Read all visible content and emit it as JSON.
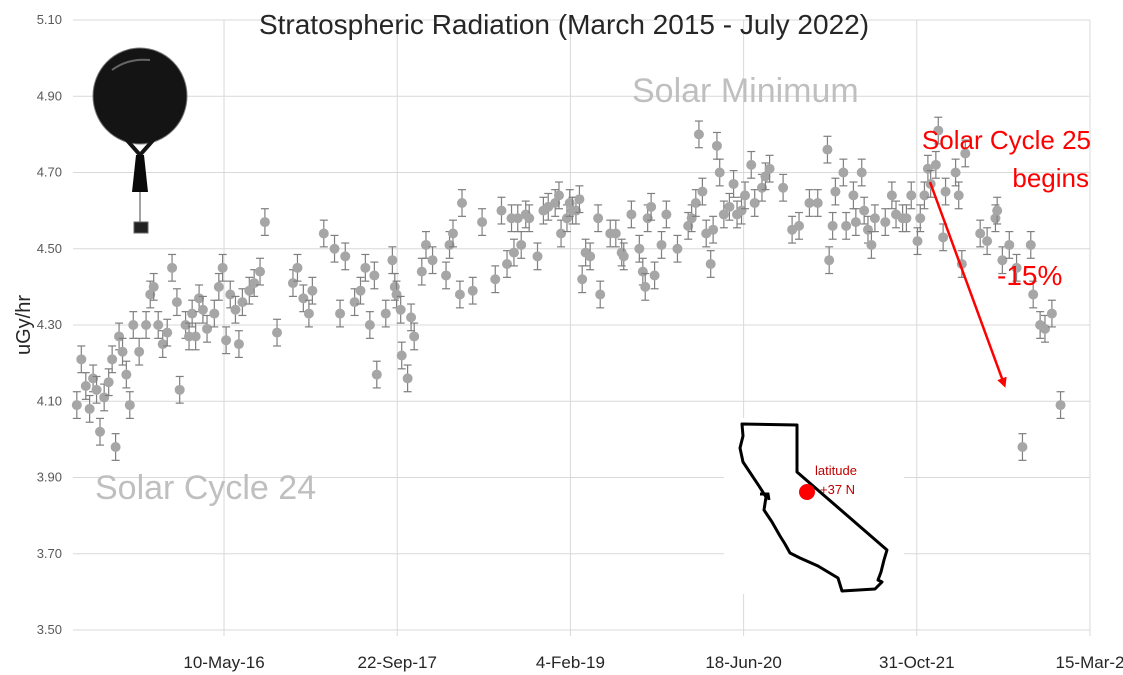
{
  "chart_data": {
    "type": "scatter",
    "title": "Stratospheric Radiation (March 2015 - July 2022)",
    "xlabel": "",
    "ylabel": "uGy/hr",
    "ylim": [
      3.5,
      5.1
    ],
    "yticks": [
      "3.50",
      "3.70",
      "3.90",
      "4.10",
      "4.30",
      "4.50",
      "4.70",
      "4.90",
      "5.10"
    ],
    "xlim": [
      "2015-03-01",
      "2023-03-15"
    ],
    "xticks": [
      {
        "date": "2016-05-10",
        "label": "10-May-16"
      },
      {
        "date": "2017-09-22",
        "label": "22-Sep-17"
      },
      {
        "date": "2019-02-04",
        "label": "4-Feb-19"
      },
      {
        "date": "2020-06-18",
        "label": "18-Jun-20"
      },
      {
        "date": "2021-10-31",
        "label": "31-Oct-21"
      },
      {
        "date": "2023-03-15",
        "label": "15-Mar-2"
      }
    ],
    "grid": true,
    "series": [
      {
        "color": "#a6a6a6",
        "error_bar": 0.035,
        "points": [
          [
            "2015-03-12",
            4.09
          ],
          [
            "2015-03-25",
            4.21
          ],
          [
            "2015-04-07",
            4.14
          ],
          [
            "2015-04-18",
            4.08
          ],
          [
            "2015-04-28",
            4.16
          ],
          [
            "2015-05-08",
            4.13
          ],
          [
            "2015-05-18",
            4.02
          ],
          [
            "2015-05-30",
            4.11
          ],
          [
            "2015-06-12",
            4.15
          ],
          [
            "2015-06-22",
            4.21
          ],
          [
            "2015-07-02",
            3.98
          ],
          [
            "2015-07-12",
            4.27
          ],
          [
            "2015-07-22",
            4.23
          ],
          [
            "2015-08-02",
            4.17
          ],
          [
            "2015-08-12",
            4.09
          ],
          [
            "2015-08-22",
            4.3
          ],
          [
            "2015-09-08",
            4.23
          ],
          [
            "2015-09-28",
            4.3
          ],
          [
            "2015-10-10",
            4.38
          ],
          [
            "2015-10-20",
            4.4
          ],
          [
            "2015-11-02",
            4.3
          ],
          [
            "2015-11-15",
            4.25
          ],
          [
            "2015-11-28",
            4.28
          ],
          [
            "2015-12-12",
            4.45
          ],
          [
            "2015-12-26",
            4.36
          ],
          [
            "2016-01-03",
            4.13
          ],
          [
            "2016-01-20",
            4.3
          ],
          [
            "2016-01-30",
            4.27
          ],
          [
            "2016-02-08",
            4.33
          ],
          [
            "2016-02-18",
            4.27
          ],
          [
            "2016-02-28",
            4.37
          ],
          [
            "2016-03-10",
            4.34
          ],
          [
            "2016-03-22",
            4.29
          ],
          [
            "2016-04-12",
            4.33
          ],
          [
            "2016-04-25",
            4.4
          ],
          [
            "2016-05-06",
            4.45
          ],
          [
            "2016-05-16",
            4.26
          ],
          [
            "2016-05-28",
            4.38
          ],
          [
            "2016-06-12",
            4.34
          ],
          [
            "2016-06-22",
            4.25
          ],
          [
            "2016-07-02",
            4.36
          ],
          [
            "2016-07-22",
            4.39
          ],
          [
            "2016-08-05",
            4.41
          ],
          [
            "2016-08-22",
            4.44
          ],
          [
            "2016-09-05",
            4.57
          ],
          [
            "2016-10-10",
            4.28
          ],
          [
            "2016-11-25",
            4.41
          ],
          [
            "2016-12-08",
            4.45
          ],
          [
            "2016-12-25",
            4.37
          ],
          [
            "2017-01-10",
            4.33
          ],
          [
            "2017-01-20",
            4.39
          ],
          [
            "2017-02-22",
            4.54
          ],
          [
            "2017-03-25",
            4.5
          ],
          [
            "2017-04-10",
            4.33
          ],
          [
            "2017-04-25",
            4.48
          ],
          [
            "2017-05-22",
            4.36
          ],
          [
            "2017-06-08",
            4.39
          ],
          [
            "2017-06-22",
            4.45
          ],
          [
            "2017-07-05",
            4.3
          ],
          [
            "2017-07-18",
            4.43
          ],
          [
            "2017-07-25",
            4.17
          ],
          [
            "2017-08-20",
            4.33
          ],
          [
            "2017-09-08",
            4.47
          ],
          [
            "2017-09-15",
            4.4
          ],
          [
            "2017-09-20",
            4.38
          ],
          [
            "2017-10-02",
            4.34
          ],
          [
            "2017-10-05",
            4.22
          ],
          [
            "2017-10-22",
            4.16
          ],
          [
            "2017-11-01",
            4.32
          ],
          [
            "2017-11-10",
            4.27
          ],
          [
            "2017-12-02",
            4.44
          ],
          [
            "2017-12-14",
            4.51
          ],
          [
            "2018-01-02",
            4.47
          ],
          [
            "2018-02-10",
            4.43
          ],
          [
            "2018-02-20",
            4.51
          ],
          [
            "2018-03-02",
            4.54
          ],
          [
            "2018-03-22",
            4.38
          ],
          [
            "2018-03-28",
            4.62
          ],
          [
            "2018-04-28",
            4.39
          ],
          [
            "2018-05-25",
            4.57
          ],
          [
            "2018-07-02",
            4.42
          ],
          [
            "2018-07-20",
            4.6
          ],
          [
            "2018-08-05",
            4.46
          ],
          [
            "2018-08-18",
            4.58
          ],
          [
            "2018-08-25",
            4.49
          ],
          [
            "2018-09-05",
            4.58
          ],
          [
            "2018-09-15",
            4.51
          ],
          [
            "2018-09-28",
            4.59
          ],
          [
            "2018-10-08",
            4.58
          ],
          [
            "2018-11-01",
            4.48
          ],
          [
            "2018-11-18",
            4.6
          ],
          [
            "2018-12-02",
            4.61
          ],
          [
            "2018-12-22",
            4.62
          ],
          [
            "2019-01-02",
            4.64
          ],
          [
            "2019-01-08",
            4.54
          ],
          [
            "2019-01-25",
            4.58
          ],
          [
            "2019-02-02",
            4.62
          ],
          [
            "2019-02-10",
            4.6
          ],
          [
            "2019-02-20",
            4.6
          ],
          [
            "2019-03-02",
            4.63
          ],
          [
            "2019-03-10",
            4.42
          ],
          [
            "2019-03-20",
            4.49
          ],
          [
            "2019-04-02",
            4.48
          ],
          [
            "2019-04-25",
            4.58
          ],
          [
            "2019-05-01",
            4.38
          ],
          [
            "2019-05-30",
            4.54
          ],
          [
            "2019-06-15",
            4.54
          ],
          [
            "2019-07-02",
            4.49
          ],
          [
            "2019-07-08",
            4.48
          ],
          [
            "2019-07-30",
            4.59
          ],
          [
            "2019-08-22",
            4.5
          ],
          [
            "2019-09-01",
            4.44
          ],
          [
            "2019-09-08",
            4.4
          ],
          [
            "2019-09-15",
            4.58
          ],
          [
            "2019-09-25",
            4.61
          ],
          [
            "2019-10-05",
            4.43
          ],
          [
            "2019-10-25",
            4.51
          ],
          [
            "2019-11-08",
            4.59
          ],
          [
            "2019-12-10",
            4.5
          ],
          [
            "2020-01-10",
            4.56
          ],
          [
            "2020-01-20",
            4.58
          ],
          [
            "2020-02-01",
            4.62
          ],
          [
            "2020-02-10",
            4.8
          ],
          [
            "2020-02-20",
            4.65
          ],
          [
            "2020-03-02",
            4.54
          ],
          [
            "2020-03-15",
            4.46
          ],
          [
            "2020-03-22",
            4.55
          ],
          [
            "2020-04-02",
            4.77
          ],
          [
            "2020-04-10",
            4.7
          ],
          [
            "2020-04-22",
            4.59
          ],
          [
            "2020-05-08",
            4.61
          ],
          [
            "2020-05-20",
            4.67
          ],
          [
            "2020-05-30",
            4.59
          ],
          [
            "2020-06-12",
            4.6
          ],
          [
            "2020-06-22",
            4.64
          ],
          [
            "2020-07-10",
            4.72
          ],
          [
            "2020-07-20",
            4.62
          ],
          [
            "2020-08-10",
            4.66
          ],
          [
            "2020-08-20",
            4.69
          ],
          [
            "2020-09-01",
            4.71
          ],
          [
            "2020-10-10",
            4.66
          ],
          [
            "2020-11-05",
            4.55
          ],
          [
            "2020-11-25",
            4.56
          ],
          [
            "2020-12-25",
            4.62
          ],
          [
            "2021-01-18",
            4.62
          ],
          [
            "2021-02-15",
            4.76
          ],
          [
            "2021-02-20",
            4.47
          ],
          [
            "2021-03-02",
            4.56
          ],
          [
            "2021-03-10",
            4.65
          ],
          [
            "2021-04-02",
            4.7
          ],
          [
            "2021-04-10",
            4.56
          ],
          [
            "2021-05-01",
            4.64
          ],
          [
            "2021-05-08",
            4.57
          ],
          [
            "2021-05-25",
            4.7
          ],
          [
            "2021-06-01",
            4.6
          ],
          [
            "2021-06-12",
            4.55
          ],
          [
            "2021-06-22",
            4.51
          ],
          [
            "2021-07-02",
            4.58
          ],
          [
            "2021-08-01",
            4.57
          ],
          [
            "2021-08-20",
            4.64
          ],
          [
            "2021-09-01",
            4.59
          ],
          [
            "2021-09-20",
            4.58
          ],
          [
            "2021-10-01",
            4.58
          ],
          [
            "2021-10-15",
            4.64
          ],
          [
            "2021-11-02",
            4.52
          ],
          [
            "2021-11-10",
            4.58
          ],
          [
            "2021-11-22",
            4.64
          ],
          [
            "2021-12-02",
            4.71
          ],
          [
            "2021-12-10",
            4.67
          ],
          [
            "2021-12-25",
            4.72
          ],
          [
            "2022-01-01",
            4.81
          ],
          [
            "2022-01-15",
            4.53
          ],
          [
            "2022-01-22",
            4.65
          ],
          [
            "2022-02-20",
            4.7
          ],
          [
            "2022-03-01",
            4.64
          ],
          [
            "2022-03-10",
            4.46
          ],
          [
            "2022-03-20",
            4.75
          ],
          [
            "2022-05-02",
            4.54
          ],
          [
            "2022-05-22",
            4.52
          ],
          [
            "2022-06-15",
            4.58
          ],
          [
            "2022-06-20",
            4.6
          ],
          [
            "2022-07-05",
            4.47
          ],
          [
            "2022-07-25",
            4.51
          ],
          [
            "2022-08-15",
            4.45
          ],
          [
            "2022-09-01",
            3.98
          ],
          [
            "2022-09-25",
            4.51
          ],
          [
            "2022-10-02",
            4.38
          ],
          [
            "2022-10-22",
            4.3
          ],
          [
            "2022-11-05",
            4.29
          ],
          [
            "2022-11-25",
            4.33
          ],
          [
            "2022-12-20",
            4.09
          ]
        ]
      }
    ],
    "annotations": {
      "solar_minimum": "Solar Minimum",
      "solar_cycle_24": "Solar Cycle 24",
      "solar_cycle_25_line1": "Solar Cycle 25",
      "solar_cycle_25_line2": "begins",
      "percent_change": "-15%",
      "latitude_line1": "latitude",
      "latitude_line2": "+37 N"
    },
    "arrow_color": "#ff0000"
  }
}
